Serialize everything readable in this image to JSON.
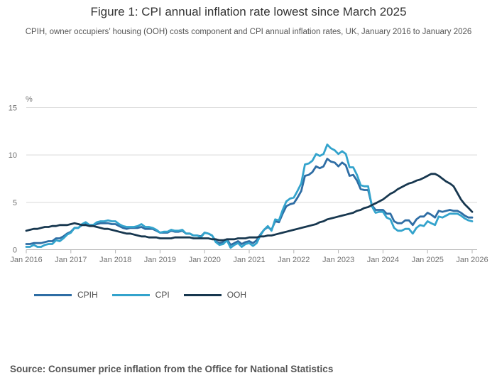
{
  "title": "Figure 1: CPI annual inflation rate lowest since March 2025",
  "subtitle": "CPIH, owner occupiers’ housing (OOH) costs component and CPI annual inflation rates, UK, January 2016 to January 2026",
  "source": "Source: Consumer price inflation from the Office for National Statistics",
  "colors": {
    "gridline": "#d9d9d9",
    "axis": "#b3b3b3",
    "tick_text": "#707070",
    "cpih": "#2e6da4",
    "cpi": "#33a3cc",
    "ooh": "#17374f"
  },
  "chart_data": {
    "type": "line",
    "title": "Figure 1: CPI annual inflation rate lowest since March 2025",
    "xlabel": "",
    "ylabel": "%",
    "unit_label": "%",
    "ylim": [
      0,
      15
    ],
    "y_ticks": [
      0,
      5,
      10,
      15
    ],
    "grid": "horizontal",
    "legend_position": "bottom-left",
    "x_frequency": "monthly",
    "x_range": [
      "Jan 2016",
      "Jan 2026"
    ],
    "x_tick_labels": [
      "Jan 2016",
      "Jan 2017",
      "Jan 2018",
      "Jan 2019",
      "Jan 2020",
      "Jan 2021",
      "Jan 2022",
      "Jan 2023",
      "Jan 2024",
      "Jan 2025",
      "Jan 2026"
    ],
    "series": [
      {
        "name": "CPIH",
        "color": "#2e6da4",
        "values": [
          0.6,
          0.6,
          0.7,
          0.7,
          0.7,
          0.8,
          0.9,
          0.9,
          1.2,
          1.2,
          1.4,
          1.7,
          1.9,
          2.3,
          2.3,
          2.6,
          2.7,
          2.6,
          2.6,
          2.7,
          2.8,
          2.8,
          2.8,
          2.7,
          2.7,
          2.5,
          2.3,
          2.2,
          2.3,
          2.3,
          2.3,
          2.4,
          2.2,
          2.2,
          2.2,
          2.0,
          1.8,
          1.8,
          1.8,
          2.0,
          1.9,
          1.9,
          2.0,
          1.7,
          1.7,
          1.5,
          1.5,
          1.4,
          1.8,
          1.7,
          1.5,
          0.9,
          0.7,
          0.8,
          1.1,
          0.5,
          0.7,
          0.9,
          0.6,
          0.8,
          0.9,
          0.7,
          1.0,
          1.6,
          2.1,
          2.4,
          2.1,
          3.0,
          2.9,
          3.8,
          4.6,
          4.8,
          4.9,
          5.5,
          6.2,
          7.8,
          7.9,
          8.2,
          8.8,
          8.6,
          8.8,
          9.6,
          9.3,
          9.2,
          8.8,
          9.2,
          8.9,
          7.8,
          7.9,
          7.3,
          6.4,
          6.3,
          6.3,
          4.7,
          4.2,
          4.2,
          4.2,
          3.8,
          3.8,
          3.0,
          2.8,
          2.8,
          3.1,
          3.1,
          2.6,
          3.2,
          3.5,
          3.5,
          3.9,
          3.7,
          3.4,
          4.1,
          4.0,
          4.1,
          4.2,
          4.1,
          4.1,
          3.9,
          3.6,
          3.4,
          3.4
        ]
      },
      {
        "name": "CPI",
        "color": "#33a3cc",
        "values": [
          0.3,
          0.3,
          0.5,
          0.3,
          0.3,
          0.5,
          0.6,
          0.6,
          1.0,
          0.9,
          1.2,
          1.6,
          1.8,
          2.3,
          2.3,
          2.7,
          2.9,
          2.6,
          2.6,
          2.9,
          3.0,
          3.0,
          3.1,
          3.0,
          3.0,
          2.7,
          2.5,
          2.4,
          2.4,
          2.4,
          2.5,
          2.7,
          2.4,
          2.4,
          2.3,
          2.1,
          1.8,
          1.9,
          1.9,
          2.1,
          2.0,
          2.0,
          2.1,
          1.7,
          1.7,
          1.5,
          1.5,
          1.3,
          1.8,
          1.7,
          1.5,
          0.8,
          0.5,
          0.6,
          1.0,
          0.2,
          0.5,
          0.7,
          0.3,
          0.6,
          0.7,
          0.4,
          0.7,
          1.5,
          2.1,
          2.5,
          2.0,
          3.2,
          3.1,
          4.2,
          5.1,
          5.4,
          5.5,
          6.2,
          7.0,
          9.0,
          9.1,
          9.4,
          10.1,
          9.9,
          10.1,
          11.1,
          10.7,
          10.5,
          10.1,
          10.4,
          10.1,
          8.7,
          8.7,
          7.9,
          6.8,
          6.7,
          6.7,
          4.6,
          3.9,
          4.0,
          4.0,
          3.4,
          3.2,
          2.3,
          2.0,
          2.0,
          2.2,
          2.2,
          1.7,
          2.3,
          2.6,
          2.5,
          3.0,
          2.8,
          2.6,
          3.5,
          3.4,
          3.6,
          3.8,
          3.8,
          3.8,
          3.6,
          3.3,
          3.1,
          3.0
        ]
      },
      {
        "name": "OOH",
        "color": "#17374f",
        "values": [
          2.0,
          2.1,
          2.2,
          2.2,
          2.3,
          2.4,
          2.4,
          2.5,
          2.5,
          2.6,
          2.6,
          2.6,
          2.7,
          2.8,
          2.7,
          2.6,
          2.6,
          2.5,
          2.5,
          2.4,
          2.3,
          2.2,
          2.2,
          2.1,
          2.0,
          1.9,
          1.8,
          1.7,
          1.7,
          1.6,
          1.5,
          1.4,
          1.4,
          1.3,
          1.3,
          1.3,
          1.2,
          1.2,
          1.2,
          1.2,
          1.3,
          1.3,
          1.3,
          1.3,
          1.3,
          1.2,
          1.2,
          1.2,
          1.2,
          1.2,
          1.1,
          1.1,
          1.0,
          1.0,
          1.1,
          1.1,
          1.1,
          1.2,
          1.2,
          1.2,
          1.3,
          1.3,
          1.3,
          1.4,
          1.4,
          1.5,
          1.5,
          1.6,
          1.7,
          1.8,
          1.9,
          2.0,
          2.1,
          2.2,
          2.3,
          2.4,
          2.5,
          2.6,
          2.7,
          2.9,
          3.0,
          3.2,
          3.3,
          3.4,
          3.5,
          3.6,
          3.7,
          3.8,
          3.9,
          4.1,
          4.2,
          4.4,
          4.5,
          4.7,
          4.9,
          5.1,
          5.3,
          5.6,
          5.9,
          6.1,
          6.4,
          6.6,
          6.8,
          7.0,
          7.1,
          7.3,
          7.4,
          7.6,
          7.8,
          8.0,
          8.0,
          7.8,
          7.5,
          7.2,
          7.0,
          6.7,
          6.0,
          5.3,
          4.8,
          4.4,
          4.0
        ]
      }
    ]
  }
}
